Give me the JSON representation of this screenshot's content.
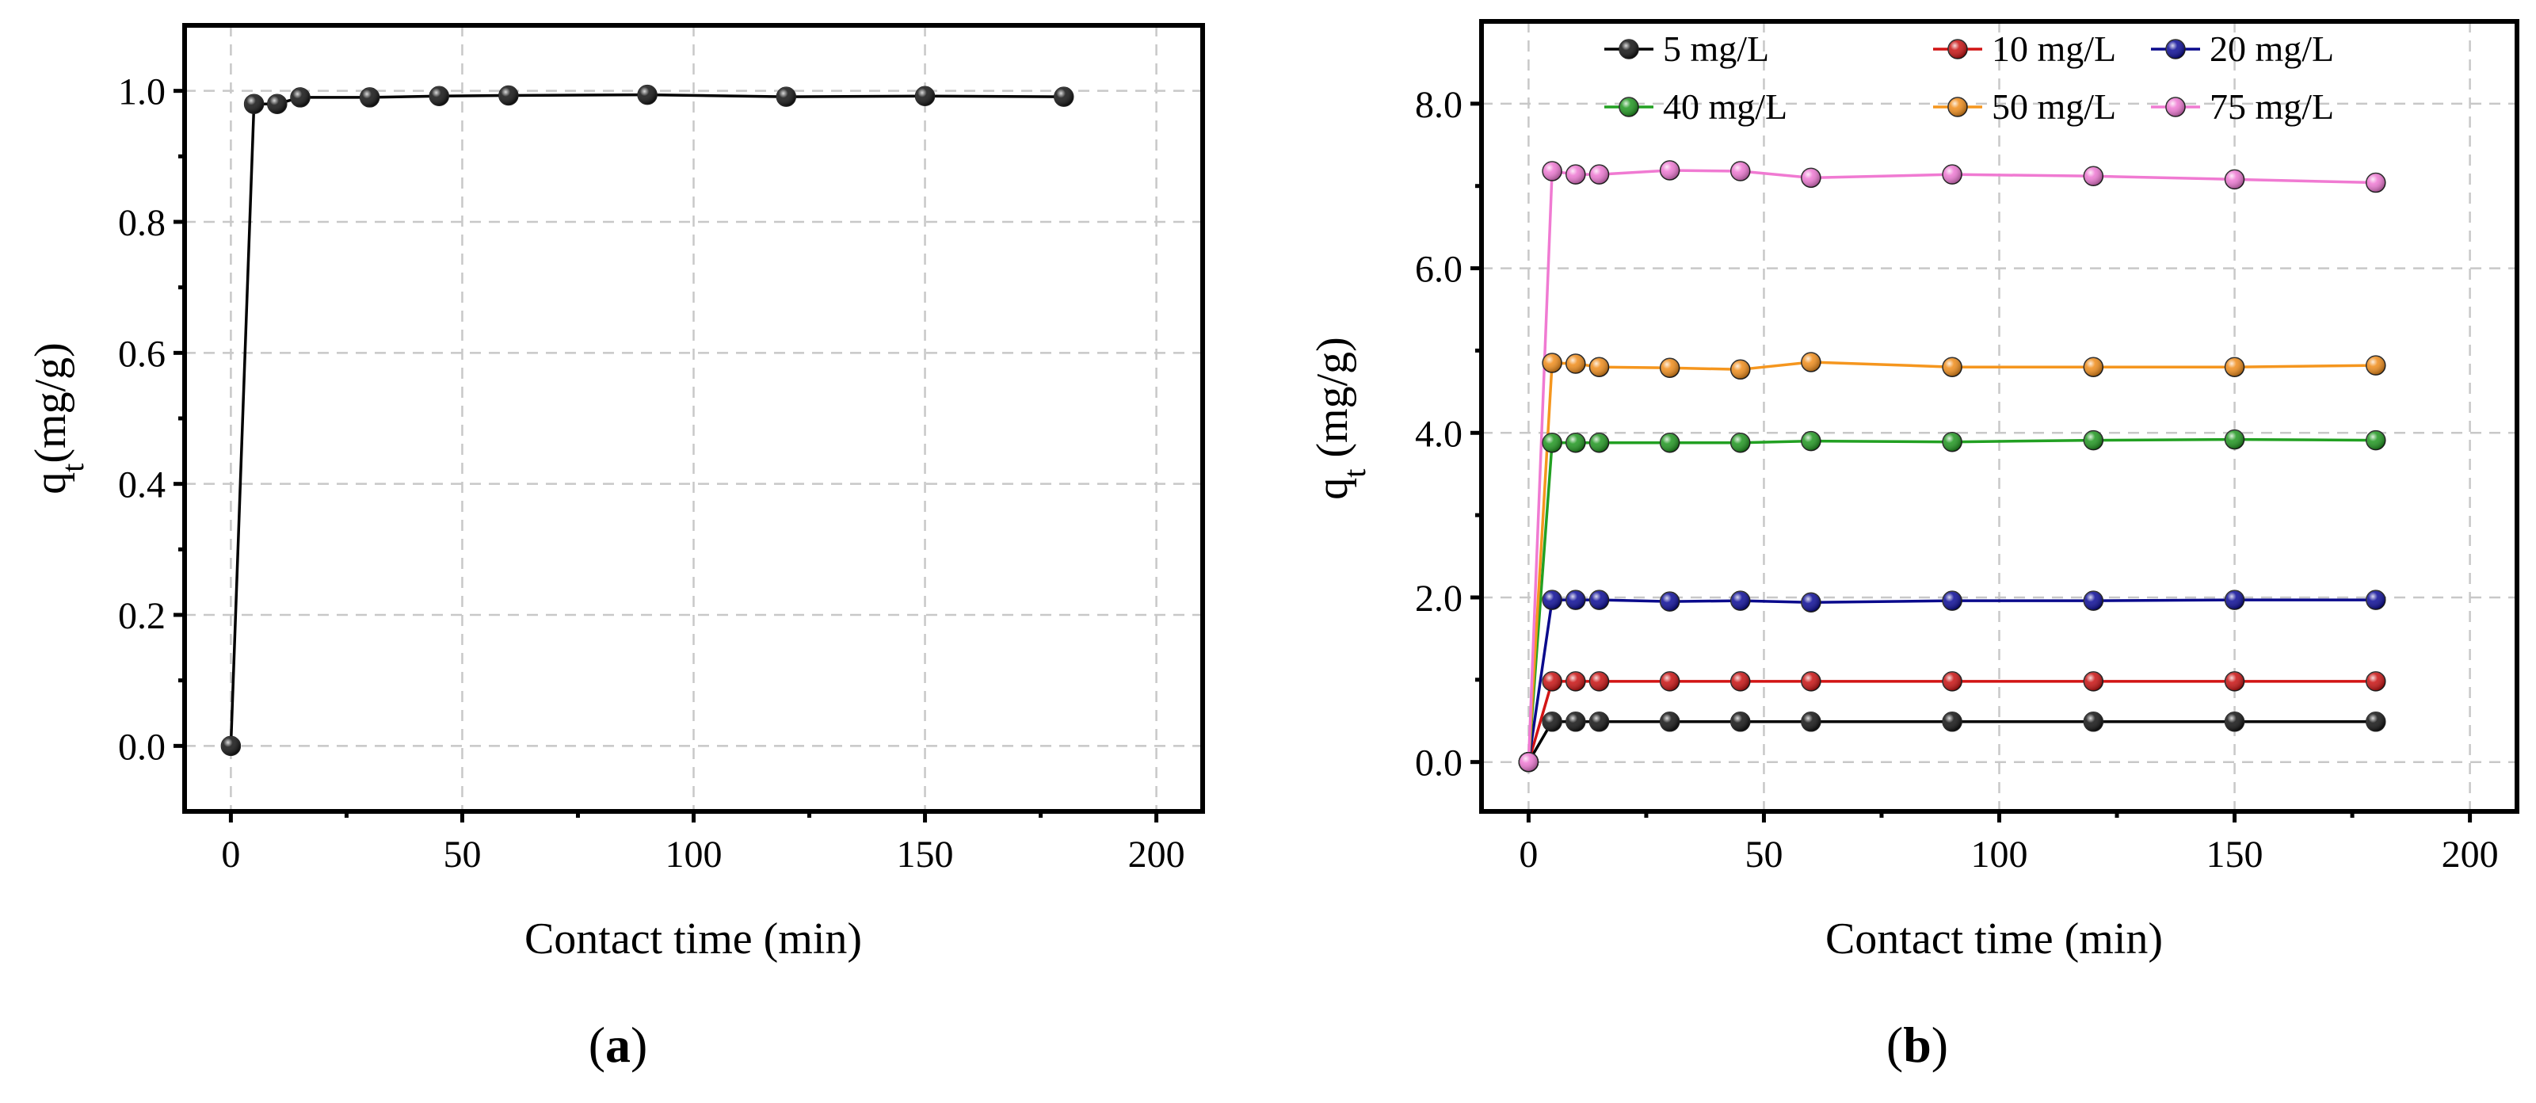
{
  "chart_data": [
    {
      "type": "line",
      "panel": "a",
      "panel_label": "(a)",
      "xlabel": "Contact time  (min)",
      "ylabel_main": "q",
      "ylabel_sub": "t",
      "ylabel_rest": "(mg/g)",
      "xlim": [
        -10,
        210
      ],
      "ylim": [
        -0.1,
        1.1
      ],
      "xticks": [
        0,
        50,
        100,
        150,
        200
      ],
      "yticks": [
        0.0,
        0.2,
        0.4,
        0.6,
        0.8,
        1.0
      ],
      "xtick_labels": [
        "0",
        "50",
        "100",
        "150",
        "200"
      ],
      "ytick_labels": [
        "0.0",
        "0.2",
        "0.4",
        "0.6",
        "0.8",
        "1.0"
      ],
      "grid": true,
      "series": [
        {
          "name": "qt",
          "color": "#000000",
          "marker_color": "#111111",
          "x": [
            0,
            5,
            10,
            15,
            30,
            45,
            60,
            90,
            120,
            150,
            180
          ],
          "values": [
            0.0,
            0.98,
            0.98,
            0.99,
            0.99,
            0.992,
            0.993,
            0.994,
            0.991,
            0.992,
            0.991
          ]
        }
      ]
    },
    {
      "type": "line",
      "panel": "b",
      "panel_label": "(b)",
      "xlabel": "Contact time (min)",
      "ylabel_main": "q",
      "ylabel_sub": "t",
      "ylabel_rest": " (mg/g)",
      "xlim": [
        -10,
        210
      ],
      "ylim": [
        -0.6,
        9.0
      ],
      "xticks": [
        0,
        50,
        100,
        150,
        200
      ],
      "yticks": [
        0.0,
        2.0,
        4.0,
        6.0,
        8.0
      ],
      "xtick_labels": [
        "0",
        "50",
        "100",
        "150",
        "200"
      ],
      "ytick_labels": [
        "0.0",
        "2.0",
        "4.0",
        "6.0",
        "8.0"
      ],
      "grid": true,
      "legend_position": "top",
      "series": [
        {
          "name": "5 mg/L",
          "color": "#000000",
          "marker_color": "#111111",
          "x": [
            0,
            5,
            10,
            15,
            30,
            45,
            60,
            90,
            120,
            150,
            180
          ],
          "values": [
            0.0,
            0.49,
            0.49,
            0.49,
            0.49,
            0.49,
            0.49,
            0.49,
            0.49,
            0.49,
            0.49
          ]
        },
        {
          "name": "10 mg/L",
          "color": "#d21414",
          "marker_color": "#c81010",
          "x": [
            0,
            5,
            10,
            15,
            30,
            45,
            60,
            90,
            120,
            150,
            180
          ],
          "values": [
            0.0,
            0.98,
            0.98,
            0.98,
            0.98,
            0.98,
            0.98,
            0.98,
            0.98,
            0.98,
            0.98
          ]
        },
        {
          "name": "20 mg/L",
          "color": "#0a0a8c",
          "marker_color": "#0a0a96",
          "x": [
            0,
            5,
            10,
            15,
            30,
            45,
            60,
            90,
            120,
            150,
            180
          ],
          "values": [
            0.0,
            1.97,
            1.97,
            1.97,
            1.95,
            1.96,
            1.94,
            1.96,
            1.96,
            1.97,
            1.97
          ]
        },
        {
          "name": "40 mg/L",
          "color": "#22a022",
          "marker_color": "#1e961e",
          "x": [
            0,
            5,
            10,
            15,
            30,
            45,
            60,
            90,
            120,
            150,
            180
          ],
          "values": [
            0.0,
            3.88,
            3.88,
            3.88,
            3.88,
            3.88,
            3.9,
            3.89,
            3.91,
            3.92,
            3.91
          ]
        },
        {
          "name": "50 mg/L",
          "color": "#f5961e",
          "marker_color": "#f08c19",
          "x": [
            0,
            5,
            10,
            15,
            30,
            45,
            60,
            90,
            120,
            150,
            180
          ],
          "values": [
            0.0,
            4.85,
            4.84,
            4.8,
            4.79,
            4.77,
            4.86,
            4.8,
            4.8,
            4.8,
            4.82
          ]
        },
        {
          "name": "75 mg/L",
          "color": "#f07ad2",
          "marker_color": "#ee78d2",
          "x": [
            0,
            5,
            10,
            15,
            30,
            45,
            60,
            90,
            120,
            150,
            180
          ],
          "values": [
            0.0,
            7.18,
            7.14,
            7.14,
            7.19,
            7.18,
            7.1,
            7.14,
            7.12,
            7.08,
            7.04
          ]
        }
      ]
    }
  ]
}
